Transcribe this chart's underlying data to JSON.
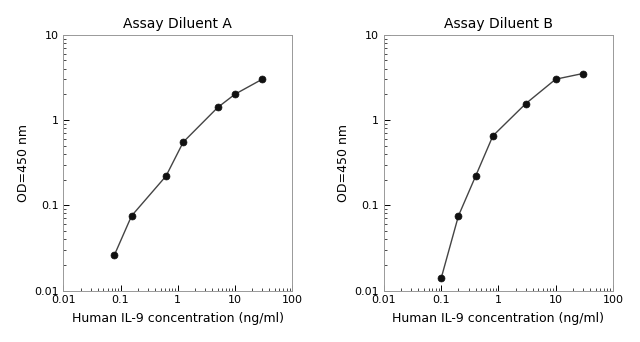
{
  "panel_A": {
    "title": "Assay Diluent A",
    "x": [
      0.078,
      0.156,
      0.625,
      1.25,
      5.0,
      10.0,
      30.0
    ],
    "y": [
      0.026,
      0.075,
      0.22,
      0.55,
      1.4,
      2.0,
      3.0
    ],
    "xlabel": "Human IL-9 concentration (ng/ml)",
    "ylabel": "OD=450 nm",
    "xlim": [
      0.01,
      100
    ],
    "ylim": [
      0.01,
      10
    ]
  },
  "panel_B": {
    "title": "Assay Diluent B",
    "x": [
      0.1,
      0.2,
      0.4,
      0.8,
      3.0,
      10.0,
      30.0
    ],
    "y": [
      0.014,
      0.075,
      0.22,
      0.65,
      1.55,
      3.0,
      3.5
    ],
    "xlabel": "Human IL-9 concentration (ng/ml)",
    "ylabel": "OD=450 nm",
    "xlim": [
      0.01,
      100
    ],
    "ylim": [
      0.01,
      10
    ]
  },
  "background_color": "#ffffff",
  "line_color": "#444444",
  "marker_color": "#111111",
  "marker_size": 5,
  "line_width": 1.0,
  "title_fontsize": 10,
  "label_fontsize": 9,
  "tick_fontsize": 8
}
